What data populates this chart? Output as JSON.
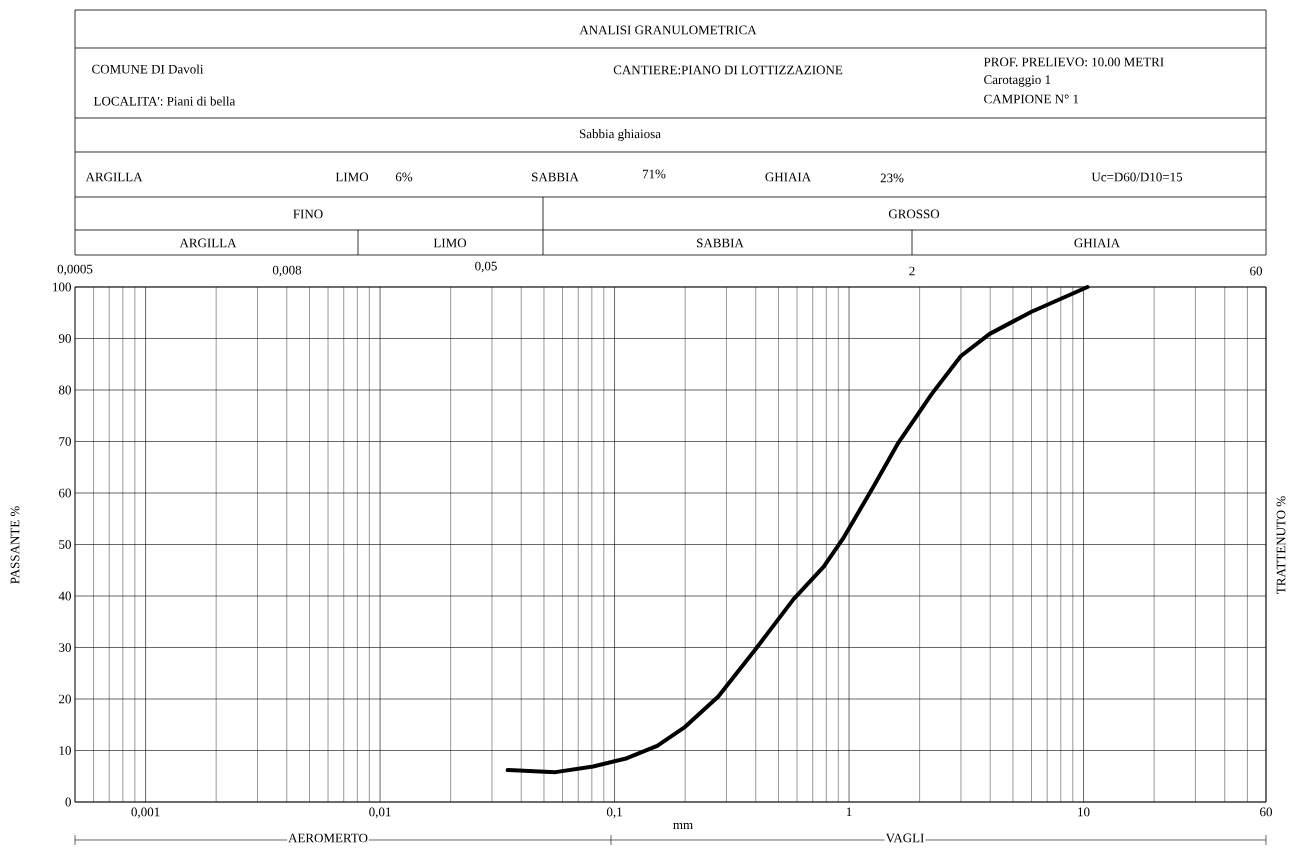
{
  "chart_data": {
    "type": "line",
    "title": "ANALISI GRANULOMETRICA",
    "xlabel": "mm",
    "ylabel": "PASSANTE %",
    "y2label": "TRATTENUTO %",
    "annotations": [
      "COMUNE DI Davoli",
      "LOCALITA': Piani di bella",
      "CANTIERE:PIANO DI LOTTIZZAZIONE",
      "PROF. PRELIEVO: 10.00 METRI",
      "Carotaggio 1",
      "CAMPIONE N° 1",
      "Sabbia ghiaiosa",
      "ARGILLA",
      "LIMO",
      "6%",
      "SABBIA",
      "71%",
      "GHIAIA",
      "23%",
      "Uc=D60/D10=15",
      "FINO",
      "GROSSO",
      "ARGILLA",
      "LIMO",
      "SABBIA",
      "GHIAIA",
      "AEROMERTO",
      "VAGLI",
      "0,0005",
      "0,008",
      "0,05",
      "2",
      "60"
    ],
    "log": "x",
    "grid": true,
    "marker": "none",
    "line_style": "solid",
    "xlim": [
      0.0005,
      60
    ],
    "ylim": [
      0,
      100
    ],
    "xticks": [
      {
        "value": 0.001,
        "label": "0,001"
      },
      {
        "value": 0.01,
        "label": "0,01"
      },
      {
        "value": 0.1,
        "label": "0,1"
      },
      {
        "value": 1,
        "label": "1"
      },
      {
        "value": 10,
        "label": "10"
      },
      {
        "value": 60,
        "label": "60"
      }
    ],
    "yticks": [
      0,
      10,
      20,
      30,
      40,
      50,
      60,
      70,
      80,
      90,
      100
    ],
    "series": [
      {
        "color": "#000000",
        "x": [
          0.035,
          0.056,
          0.081,
          0.113,
          0.152,
          0.2,
          0.277,
          0.4,
          0.58,
          0.78,
          0.95,
          1.27,
          1.62,
          2.25,
          3.0,
          3.98,
          6.0,
          10.4
        ],
        "values": [
          6.2,
          5.8,
          6.9,
          8.5,
          10.9,
          14.6,
          20.5,
          29.7,
          39.4,
          45.7,
          51.4,
          61.2,
          69.7,
          79.2,
          86.6,
          90.9,
          95.2,
          100
        ]
      }
    ]
  }
}
